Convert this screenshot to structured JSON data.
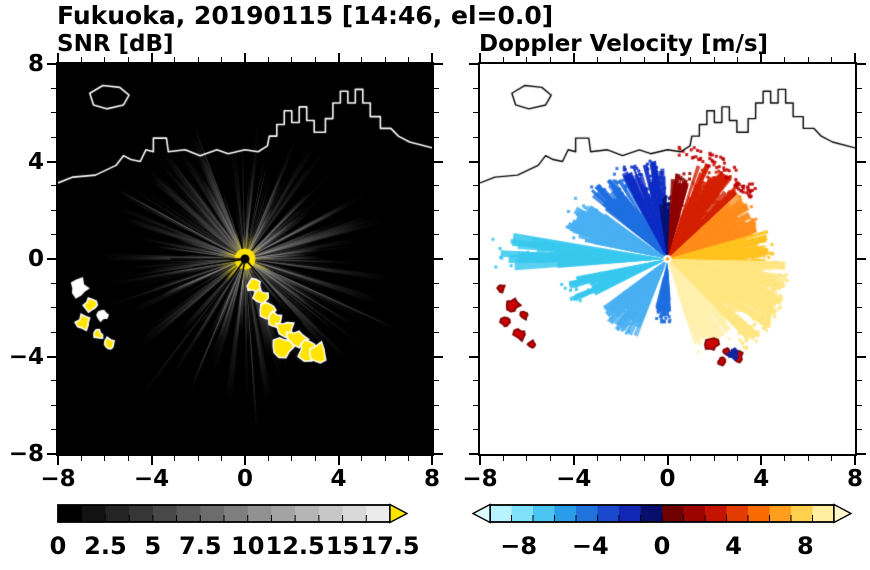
{
  "figure_title": "Fukuoka, 20190115 [14:46, el=0.0]",
  "chart_data": [
    {
      "type": "heatmap",
      "panel": "left",
      "title": "SNR [dB]",
      "xlim": [
        -8,
        8
      ],
      "ylim": [
        -8,
        8
      ],
      "x_tick_labels": [
        "−8",
        "−4",
        "0",
        "4",
        "8"
      ],
      "x_tick_values": [
        -8,
        -4,
        0,
        4,
        8
      ],
      "y_tick_labels": [
        "8",
        "4",
        "0",
        "−4",
        "−8"
      ],
      "y_tick_values": [
        8,
        4,
        0,
        -4,
        -8
      ],
      "background": "#000000",
      "coastline_color": "#ffffff",
      "colorbar": {
        "tick_labels": [
          "0",
          "2.5",
          "5",
          "7.5",
          "10",
          "12.5",
          "15",
          "17.5"
        ],
        "tick_values": [
          0,
          2.5,
          5,
          7.5,
          10,
          12.5,
          15,
          17.5
        ],
        "colormap": "black-to-white grayscale, yellow arrow for values above maximum",
        "colors": [
          "#000000",
          "#121212",
          "#242424",
          "#363636",
          "#484848",
          "#5a5a5a",
          "#6c6c6c",
          "#7f7f7f",
          "#919191",
          "#a3a3a3",
          "#b5b5b5",
          "#c7c7c7",
          "#d9d9d9",
          "#ebebeb"
        ],
        "over_range_arrow": "#ffe400"
      },
      "features": {
        "radar_center": [
          0,
          0
        ],
        "core": {
          "color": "#ffe400",
          "radius": 0.45
        },
        "spokes": {
          "description": "gray-white radial spokes in all azimuths out to ~6 km",
          "color_range": [
            "#8c8c8c",
            "#ffffff"
          ]
        },
        "shadow_spokes": [
          [
            126,
            2.8
          ],
          [
            171,
            2.3
          ],
          [
            180,
            3.2
          ],
          [
            47,
            3.6
          ],
          [
            100,
            1.6
          ]
        ],
        "echo_chain": {
          "fill": "#ffe400",
          "outline": "#ffffff",
          "points": [
            [
              0.4,
              -1.1
            ],
            [
              0.7,
              -1.6
            ],
            [
              1.0,
              -2.1
            ],
            [
              1.3,
              -2.5
            ],
            [
              1.7,
              -2.9
            ],
            [
              2.2,
              -3.3
            ],
            [
              2.7,
              -3.7
            ],
            [
              1.6,
              -3.6
            ],
            [
              3.1,
              -3.9
            ]
          ]
        },
        "island_echoes": {
          "fill": "#ffe400",
          "outline": "#ffffff",
          "points": [
            [
              -7.1,
              -1.2
            ],
            [
              -6.6,
              -1.9
            ],
            [
              -6.9,
              -2.6
            ],
            [
              -6.1,
              -2.3
            ],
            [
              -6.3,
              -3.1
            ],
            [
              -5.8,
              -3.5
            ]
          ]
        }
      }
    },
    {
      "type": "heatmap",
      "panel": "right",
      "title": "Doppler Velocity [m/s]",
      "xlim": [
        -8,
        8
      ],
      "ylim": [
        -8,
        8
      ],
      "x_tick_labels": [
        "−8",
        "−4",
        "0",
        "4",
        "8"
      ],
      "x_tick_values": [
        -8,
        -4,
        0,
        4,
        8
      ],
      "y_tick_labels": [
        "8",
        "4",
        "0",
        "−4",
        "−8"
      ],
      "y_tick_values": [
        8,
        4,
        0,
        -4,
        -8
      ],
      "background": "#ffffff",
      "coastline_color": "#000000",
      "colorbar": {
        "tick_labels": [
          "−8",
          "−4",
          "0",
          "4",
          "8"
        ],
        "tick_values": [
          -8,
          -4,
          0,
          4,
          8
        ],
        "colormap": "diverging: pale cyan → blue → navy at zero, dark red → red → orange → pale yellow",
        "colors": [
          "#b8f4ff",
          "#7fe0fa",
          "#4cc4f2",
          "#2a9ce8",
          "#2272dc",
          "#1b49ce",
          "#1227b4",
          "#070e6e",
          "#6e0000",
          "#9c0400",
          "#c41400",
          "#e23c00",
          "#f76b00",
          "#ff9e1c",
          "#ffcf4d",
          "#ffef9e"
        ],
        "under_range_arrow": "#dcffff",
        "over_range_arrow": "#fff8cc"
      },
      "features": {
        "radar_center": [
          0,
          0
        ],
        "sectors": [
          {
            "dir": 178,
            "span": 10,
            "r0": 0.5,
            "r1": 6.6,
            "color": "#38c8ee"
          },
          {
            "dir": 157,
            "span": 22,
            "r0": 0.5,
            "r1": 4.2,
            "color": "#49b0f2"
          },
          {
            "dir": 130,
            "span": 22,
            "r0": 0.4,
            "r1": 3.9,
            "color": "#1e6fe0"
          },
          {
            "dir": 105,
            "span": 26,
            "r0": 0.3,
            "r1": 3.7,
            "color": "#0d2cc4"
          },
          {
            "dir": 92,
            "span": 12,
            "r0": 0.2,
            "r1": 2.3,
            "color": "#051273"
          },
          {
            "dir": 80,
            "span": 12,
            "r0": 0.3,
            "r1": 3.3,
            "color": "#8f0000"
          },
          {
            "dir": 57,
            "span": 28,
            "r0": 0.4,
            "r1": 3.9,
            "color": "#d42000"
          },
          {
            "dir": 60,
            "span": 50,
            "r0": 3.5,
            "r1": 4.6,
            "color": "#c00000",
            "sparse": true
          },
          {
            "dir": 28,
            "span": 26,
            "r0": 0.4,
            "r1": 3.7,
            "color": "#ff8c1a"
          },
          {
            "dir": 6,
            "span": 18,
            "r0": 0.4,
            "r1": 4.1,
            "color": "#ffc21f"
          },
          {
            "dir": -24,
            "span": 42,
            "r0": 0.4,
            "r1": 4.7,
            "color": "#ffe680"
          },
          {
            "dir": -30,
            "span": 40,
            "r0": 3.8,
            "r1": 5.0,
            "color": "#ffe680",
            "sparse": true
          },
          {
            "dir": -58,
            "span": 26,
            "r0": 0.3,
            "r1": 3.7,
            "color": "#fff0ae"
          },
          {
            "dir": -95,
            "span": 16,
            "r0": 0.6,
            "r1": 2.4,
            "color": "#1e6fe0"
          },
          {
            "dir": -128,
            "span": 30,
            "r0": 0.5,
            "r1": 3.3,
            "color": "#49b0f2"
          },
          {
            "dir": -162,
            "span": 14,
            "r0": 0.5,
            "r1": 4.2,
            "color": "#38c8ee"
          }
        ],
        "blob_clusters": [
          {
            "color": "#cc0000",
            "edge": "#7a0000",
            "points": [
              [
                -7.1,
                -1.2
              ],
              [
                -6.6,
                -1.9
              ],
              [
                -6.9,
                -2.6
              ],
              [
                -6.1,
                -2.3
              ],
              [
                -6.3,
                -3.1
              ],
              [
                -5.8,
                -3.5
              ]
            ]
          },
          {
            "color": "#cc0000",
            "edge": "#7a0000",
            "points": [
              [
                1.9,
                -3.5
              ],
              [
                2.5,
                -3.8
              ],
              [
                3.0,
                -4.0
              ],
              [
                2.3,
                -4.2
              ]
            ]
          },
          {
            "color": "#10249c",
            "edge": "#10249c",
            "points": [
              [
                2.8,
                -3.9
              ]
            ]
          }
        ]
      }
    }
  ]
}
